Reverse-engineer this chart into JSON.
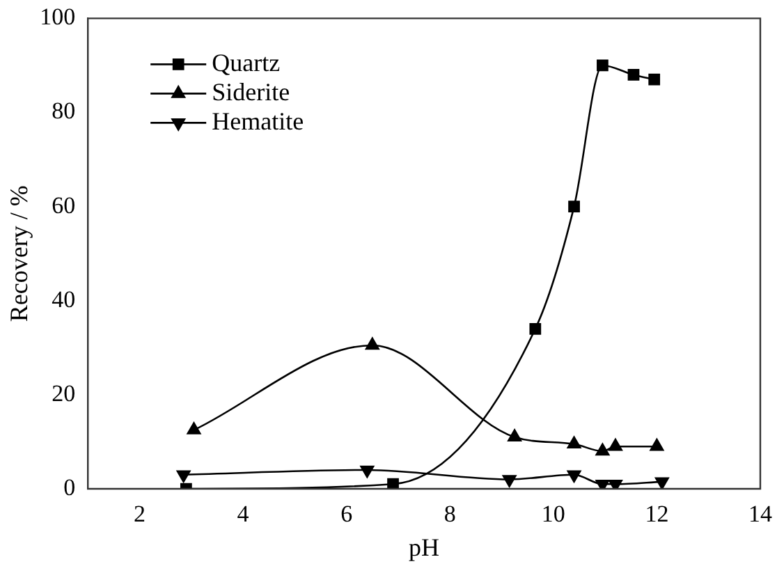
{
  "chart_data": {
    "type": "line",
    "xlabel": "pH",
    "ylabel": "Recovery / %",
    "xlim": [
      1,
      14
    ],
    "xticks": [
      2,
      4,
      6,
      8,
      10,
      12,
      14
    ],
    "ylim": [
      0,
      100
    ],
    "yticks": [
      0,
      20,
      40,
      60,
      80,
      100
    ],
    "grid": false,
    "legend": "top left",
    "series": [
      {
        "name": "Quartz",
        "color": "#000000",
        "marker": "square",
        "x": [
          2.9,
          6.9,
          9.65,
          10.4,
          10.95,
          11.55,
          11.95
        ],
        "values": [
          0,
          1,
          34,
          60,
          90,
          88,
          87
        ]
      },
      {
        "name": "Siderite",
        "color": "#000000",
        "marker": "triangle",
        "x": [
          3.05,
          6.5,
          9.25,
          10.4,
          10.95,
          11.2,
          12
        ],
        "values": [
          12.5,
          30.5,
          11,
          9.5,
          8,
          9,
          9
        ]
      },
      {
        "name": "Hematite",
        "color": "#000000",
        "marker": "triangle-down",
        "x": [
          2.85,
          6.4,
          9.15,
          10.4,
          10.95,
          11.2,
          12.1
        ],
        "values": [
          3,
          4,
          2,
          3,
          1,
          1,
          1.5
        ]
      }
    ]
  }
}
